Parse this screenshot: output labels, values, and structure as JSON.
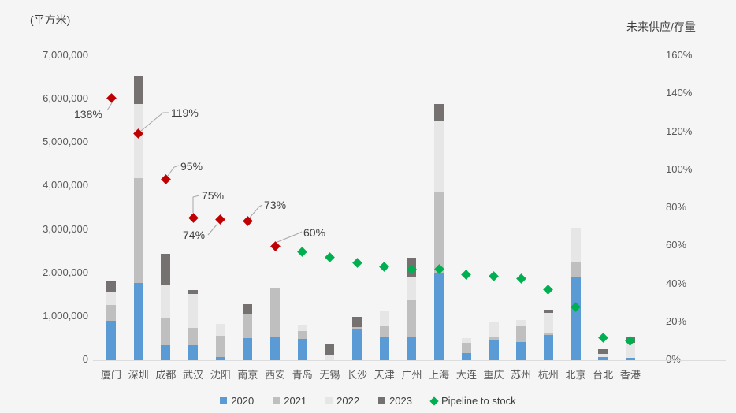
{
  "chart": {
    "left_axis_title": "(平方米)",
    "right_axis_title": "未来供应/存量",
    "legend": [
      {
        "label": "2020",
        "color": "#5B9BD5",
        "marker": "square"
      },
      {
        "label": "2021",
        "color": "#BFBFBF",
        "marker": "square"
      },
      {
        "label": "2022",
        "color": "#E7E6E6",
        "marker": "square"
      },
      {
        "label": "2023",
        "color": "#767171",
        "marker": "square"
      },
      {
        "label": "Pipeline to stock",
        "color": "#00B050",
        "marker": "diamond"
      }
    ]
  },
  "chart_data": {
    "type": "combo: stacked bar (left axis, 平方米) + scatter diamonds (right axis, %)",
    "title": "",
    "unit_left": "平方米",
    "unit_right": "未来供应/存量 (%)",
    "categories": [
      "厦门",
      "深圳",
      "成都",
      "武汉",
      "沈阳",
      "南京",
      "西安",
      "青岛",
      "无锡",
      "长沙",
      "天津",
      "广州",
      "上海",
      "大连",
      "重庆",
      "苏州",
      "杭州",
      "北京",
      "台北",
      "香港"
    ],
    "series": [
      {
        "name": "2020",
        "color": "#5B9BD5",
        "values": [
          910000,
          1780000,
          340000,
          340000,
          70000,
          500000,
          540000,
          490000,
          0,
          700000,
          540000,
          550000,
          2010000,
          160000,
          450000,
          410000,
          580000,
          1930000,
          70000,
          50000
        ]
      },
      {
        "name": "2021",
        "color": "#BFBFBF",
        "values": [
          360000,
          2410000,
          620000,
          410000,
          490000,
          570000,
          1110000,
          190000,
          0,
          60000,
          240000,
          850000,
          1880000,
          240000,
          90000,
          370000,
          60000,
          330000,
          0,
          0
        ]
      },
      {
        "name": "2022",
        "color": "#E7E6E6",
        "values": [
          310000,
          1700000,
          780000,
          770000,
          280000,
          0,
          0,
          140000,
          110000,
          0,
          370000,
          500000,
          1630000,
          100000,
          330000,
          150000,
          440000,
          790000,
          80000,
          350000
        ]
      },
      {
        "name": "2023",
        "color": "#767171",
        "values": [
          220000,
          660000,
          700000,
          90000,
          0,
          210000,
          0,
          0,
          270000,
          240000,
          0,
          450000,
          380000,
          0,
          0,
          0,
          80000,
          0,
          110000,
          150000
        ]
      }
    ],
    "extra_top_cap": {
      "category": "厦门",
      "index": 0,
      "color": "#4472C4",
      "value": 40000
    },
    "scatter_series": {
      "name": "Pipeline to stock",
      "points": [
        {
          "city": "厦门",
          "pct": 138,
          "label": "138%",
          "color": "#C00000"
        },
        {
          "city": "深圳",
          "pct": 119,
          "label": "119%",
          "color": "#C00000"
        },
        {
          "city": "成都",
          "pct": 95,
          "label": "95%",
          "color": "#C00000"
        },
        {
          "city": "武汉",
          "pct": 75,
          "label": "75%",
          "color": "#C00000"
        },
        {
          "city": "沈阳",
          "pct": 74,
          "label": "74%",
          "color": "#C00000"
        },
        {
          "city": "南京",
          "pct": 73,
          "label": "73%",
          "color": "#C00000"
        },
        {
          "city": "西安",
          "pct": 60,
          "label": "60%",
          "color": "#C00000"
        },
        {
          "city": "青岛",
          "pct": 57,
          "label": null,
          "color": "#00B050"
        },
        {
          "city": "无锡",
          "pct": 54,
          "label": null,
          "color": "#00B050"
        },
        {
          "city": "长沙",
          "pct": 51,
          "label": null,
          "color": "#00B050"
        },
        {
          "city": "天津",
          "pct": 49,
          "label": null,
          "color": "#00B050"
        },
        {
          "city": "广州",
          "pct": 48,
          "label": null,
          "color": "#00B050"
        },
        {
          "city": "上海",
          "pct": 48,
          "label": null,
          "color": "#00B050"
        },
        {
          "city": "大连",
          "pct": 45,
          "label": null,
          "color": "#00B050"
        },
        {
          "city": "重庆",
          "pct": 44,
          "label": null,
          "color": "#00B050"
        },
        {
          "city": "苏州",
          "pct": 43,
          "label": null,
          "color": "#00B050"
        },
        {
          "city": "杭州",
          "pct": 37,
          "label": null,
          "color": "#00B050"
        },
        {
          "city": "北京",
          "pct": 28,
          "label": null,
          "color": "#00B050"
        },
        {
          "city": "台北",
          "pct": 12,
          "label": null,
          "color": "#00B050"
        },
        {
          "city": "香港",
          "pct": 10,
          "label": null,
          "color": "#00B050"
        }
      ]
    },
    "left_axis": {
      "min": 0,
      "max": 7000000,
      "step": 1000000,
      "ticks": [
        "0",
        "1,000,000",
        "2,000,000",
        "3,000,000",
        "4,000,000",
        "5,000,000",
        "6,000,000",
        "7,000,000"
      ],
      "tick_values": [
        0,
        1000000,
        2000000,
        3000000,
        4000000,
        5000000,
        6000000,
        7000000
      ]
    },
    "right_axis": {
      "min": 0,
      "max": 160,
      "step": 20,
      "ticks": [
        "0%",
        "20%",
        "40%",
        "60%",
        "80%",
        "100%",
        "120%",
        "140%",
        "160%"
      ],
      "tick_values": [
        0,
        20,
        40,
        60,
        80,
        100,
        120,
        140,
        160
      ]
    },
    "grid": false,
    "legend_position": "bottom"
  }
}
